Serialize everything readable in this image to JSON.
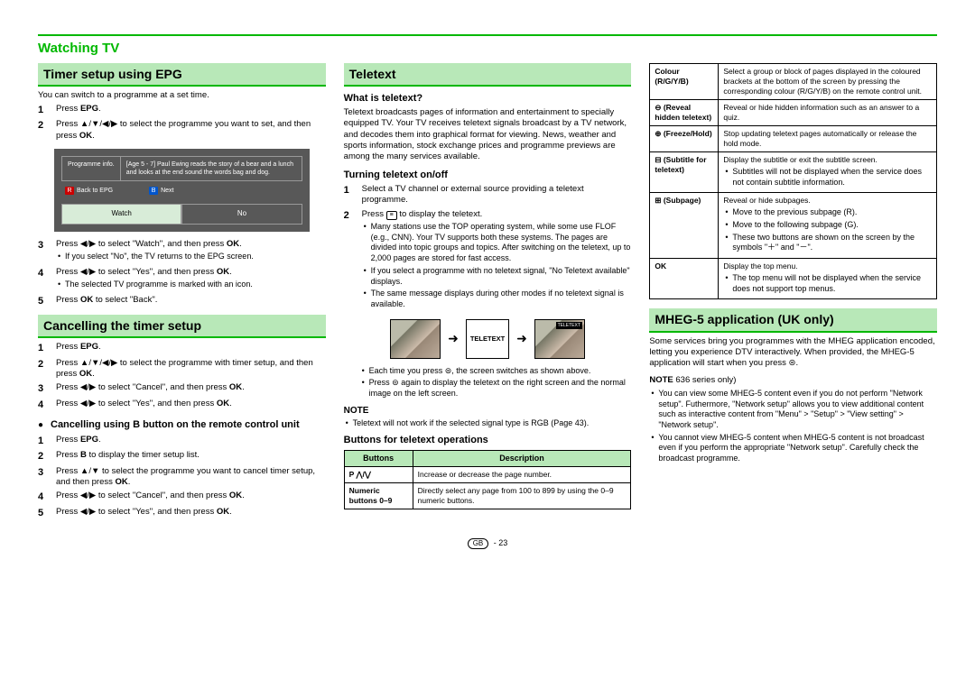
{
  "colors": {
    "accent": "#00b800",
    "highlight": "#b8e8b8",
    "epg_bg": "#585858",
    "epg_sel": "#d8ecd8"
  },
  "header": "Watching TV",
  "col1": {
    "sec1_title": "Timer setup using EPG",
    "intro": "You can switch to a programme at a set time.",
    "s1": "Press ",
    "s1b": "EPG",
    "s1c": ".",
    "s2": "Press ▲/▼/◀/▶ to select the programme you want to set, and then press ",
    "s2b": "OK",
    "s2c": ".",
    "epg": {
      "pi": "Programme info.",
      "desc": "[Age 5 - 7] Paul Ewing reads the story of a bear and a lunch and looks at the end sound the words bag and dog.",
      "back": "Back to EPG",
      "next": "Next",
      "watch": "Watch",
      "no": "No"
    },
    "s3": "Press ◀/▶ to select \"Watch\", and then press ",
    "s3b": "OK",
    "s3c": ".",
    "s3n": "If you select \"No\", the TV returns to the EPG screen.",
    "s4a": "Press ◀/▶ to select \"Yes\", and then press ",
    "s4b": "OK",
    "s4c": ".",
    "s4n": "The selected TV programme is marked with an icon.",
    "s5a": "Press ",
    "s5b": "OK",
    "s5c": " to select \"Back\".",
    "sec2_title": "Cancelling the timer setup",
    "c1a": "Press ",
    "c1b": "EPG",
    "c1c": ".",
    "c2": "Press ▲/▼/◀/▶ to select the programme with timer setup, and then press ",
    "c2b": "OK",
    "c2c": ".",
    "c3": "Press ◀/▶ to select \"Cancel\", and then press ",
    "c3b": "OK",
    "c3c": ".",
    "c4": "Press ◀/▶ to select \"Yes\", and then press ",
    "c4b": "OK",
    "c4c": ".",
    "sub3": "Cancelling using B button on the remote control unit",
    "b1a": "Press ",
    "b1b": "EPG",
    "b1c": ".",
    "b2a": "Press ",
    "b2b": "B",
    "b2c": " to display the timer setup list.",
    "b3": "Press ▲/▼ to select the programme you want to cancel timer setup, and then press ",
    "b3b": "OK",
    "b3c": ".",
    "b4": "Press ◀/▶ to select \"Cancel\", and then press ",
    "b4b": "OK",
    "b4c": ".",
    "b5": "Press ◀/▶ to select \"Yes\", and then press ",
    "b5b": "OK",
    "b5c": "."
  },
  "col2": {
    "title": "Teletext",
    "sub1": "What is teletext?",
    "p1": "Teletext broadcasts pages of information and entertainment to specially equipped TV. Your TV receives teletext signals broadcast by a TV network, and decodes them into graphical format for viewing. News, weather and sports information, stock exchange prices and programme previews are among the many services available.",
    "sub2": "Turning teletext on/off",
    "t1": "Select a TV channel or external source providing a teletext programme.",
    "t2a": "Press ",
    "t2b": " to display the teletext.",
    "t2n1": "Many stations use the TOP operating system, while some use FLOF (e.g., CNN). Your TV supports both these systems. The pages are divided into topic groups and topics. After switching on the teletext, up to 2,000 pages are stored for fast access.",
    "t2n2": "If you select a programme with no teletext signal, \"No Teletext available\" displays.",
    "t2n3": "The same message displays during other modes if no teletext signal is available.",
    "tlabel": "TELETEXT",
    "pr1": "Each time you press ⊜, the screen switches as shown above.",
    "pr2": "Press ⊜ again to display the teletext on the right screen and the normal image on the left screen.",
    "note": "NOTE",
    "noteline": "Teletext will not work if the selected signal type is RGB (Page 43).",
    "sub3": "Buttons for teletext operations",
    "th1": "Buttons",
    "th2": "Description",
    "r1a": "P ⋀/⋁",
    "r1b": "Increase or decrease the page number.",
    "r2a": "Numeric buttons 0–9",
    "r2b": "Directly select any page from 100 to 899 by using the 0–9 numeric buttons."
  },
  "col3": {
    "rows": [
      {
        "label": "Colour (R/G/Y/B)",
        "text": "Select a group or block of pages displayed in the coloured brackets at the bottom of the screen by pressing the corresponding colour (R/G/Y/B) on the remote control unit."
      },
      {
        "label": "⊖ (Reveal hidden teletext)",
        "text": "Reveal or hide hidden information such as an answer to a quiz."
      },
      {
        "label": "⊕ (Freeze/Hold)",
        "text": "Stop updating teletext pages automatically or release the hold mode."
      },
      {
        "label": "⊟ (Subtitle for teletext)",
        "text": "Display the subtitle or exit the subtitle screen.",
        "bullets": [
          "Subtitles will not be displayed when the service does not contain subtitle information."
        ]
      },
      {
        "label": "⊞ (Subpage)",
        "text": "Reveal or hide subpages.",
        "bullets": [
          "Move to the previous subpage (R).",
          "Move to the following subpage (G).",
          "These two buttons are shown on the screen by the symbols \"＋\" and \"－\"."
        ]
      },
      {
        "label": "OK",
        "text": "Display the top menu.",
        "bullets": [
          "The top menu will not be displayed when the service does not support top menus."
        ]
      }
    ],
    "sec_title": "MHEG-5 application (UK only)",
    "p1": "Some services bring you programmes with the MHEG application encoded, letting you experience DTV interactively. When provided, the MHEG-5 application will start when you press ⊜.",
    "note_head": "NOTE",
    "note_sub": " 636 series only)",
    "n1": "You can view some MHEG-5 content even if you do not perform \"Network setup\". Futhermore, \"Network setup\" allows you to view additional content such as interactive content from \"Menu\" > \"Setup\" > \"View setting\" > \"Network setup\".",
    "n2": "You cannot view MHEG-5 content when MHEG-5 content is not broadcast even if you perform the appropriate \"Network setup\". Carefully check the broadcast programme."
  },
  "footer": {
    "gb": "GB",
    "page": " - 23"
  }
}
